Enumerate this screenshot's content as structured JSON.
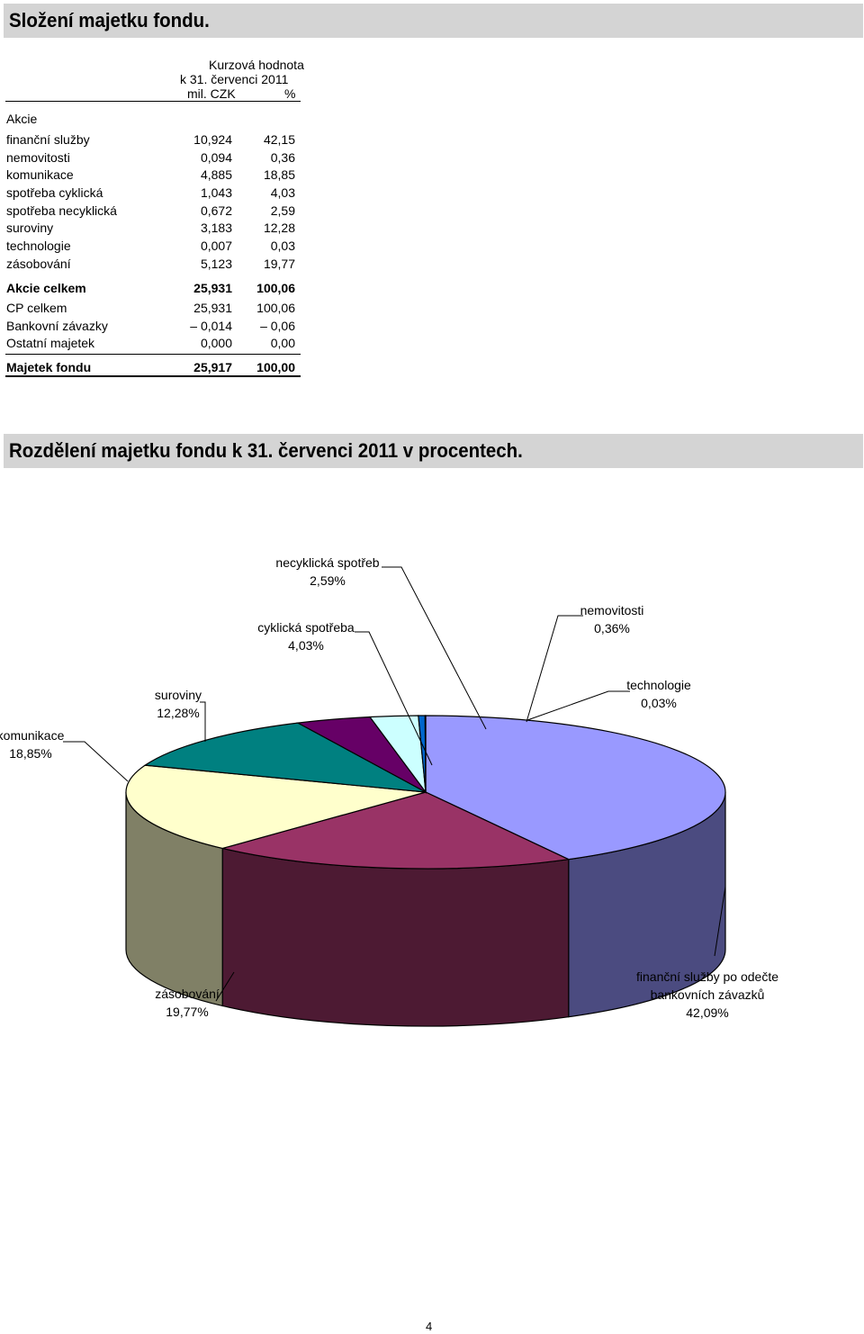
{
  "section1_title": "Složení majetku fondu.",
  "table": {
    "header_value": [
      "Kurzová hodnota",
      "k 31. červenci 2011",
      "mil. CZK"
    ],
    "header_pct": "%",
    "group_label": "Akcie",
    "rows": [
      {
        "label": "finanční služby",
        "value": "10,924",
        "pct": "42,15"
      },
      {
        "label": "nemovitosti",
        "value": "0,094",
        "pct": "0,36"
      },
      {
        "label": "komunikace",
        "value": "4,885",
        "pct": "18,85"
      },
      {
        "label": "spotřeba cyklická",
        "value": "1,043",
        "pct": "4,03"
      },
      {
        "label": "spotřeba necyklická",
        "value": "0,672",
        "pct": "2,59"
      },
      {
        "label": "suroviny",
        "value": "3,183",
        "pct": "12,28"
      },
      {
        "label": "technologie",
        "value": "0,007",
        "pct": "0,03"
      },
      {
        "label": "zásobování",
        "value": "5,123",
        "pct": "19,77"
      }
    ],
    "akcie_total": {
      "label": "Akcie celkem",
      "value": "25,931",
      "pct": "100,06"
    },
    "other_rows": [
      {
        "label": "CP celkem",
        "value": "25,931",
        "pct": "100,06"
      },
      {
        "label": "Bankovní závazky",
        "value": "– 0,014",
        "pct": "– 0,06"
      },
      {
        "label": "Ostatní majetek",
        "value": "0,000",
        "pct": "0,00"
      }
    ],
    "grand_total": {
      "label": "Majetek fondu",
      "value": "25,917",
      "pct": "100,00"
    }
  },
  "section2_title": "Rozdělení majetku fondu k 31. červenci 2011 v procentech.",
  "chart_data": {
    "type": "pie",
    "title": "",
    "slices": [
      {
        "name": "finanční služby po odečte bankovních závazků",
        "value": 42.09,
        "label_lines": [
          "finanční služby po odečte",
          "bankovních závazků"
        ],
        "value_label": "42,09%",
        "color": "#9999ff",
        "side_color": "#4b4b80"
      },
      {
        "name": "zásobování",
        "value": 19.77,
        "label_lines": [
          "zásobování"
        ],
        "value_label": "19,77%",
        "color": "#993366",
        "side_color": "#4d1a33"
      },
      {
        "name": "komunikace",
        "value": 18.85,
        "label_lines": [
          "komunikace"
        ],
        "value_label": "18,85%",
        "color": "#ffffcc",
        "side_color": "#808066"
      },
      {
        "name": "suroviny",
        "value": 12.28,
        "label_lines": [
          "suroviny"
        ],
        "value_label": "12,28%",
        "color": "#008080",
        "side_color": "#004040"
      },
      {
        "name": "cyklická spotřeba",
        "value": 4.03,
        "label_lines": [
          "cyklická spotřeba"
        ],
        "value_label": "4,03%",
        "color": "#660066",
        "side_color": "#330033"
      },
      {
        "name": "necyklická spotřeba",
        "value": 2.59,
        "label_lines": [
          "necyklická spotřeb"
        ],
        "value_label": "2,59%",
        "color": "#ccffff",
        "side_color": "#668080"
      },
      {
        "name": "nemovitosti",
        "value": 0.36,
        "label_lines": [
          "nemovitosti"
        ],
        "value_label": "0,36%",
        "color": "#0066cc",
        "side_color": "#003366"
      },
      {
        "name": "technologie",
        "value": 0.03,
        "label_lines": [
          "technologie"
        ],
        "value_label": "0,03%",
        "color": "#000080",
        "side_color": "#000040"
      }
    ]
  },
  "page_number": "4"
}
